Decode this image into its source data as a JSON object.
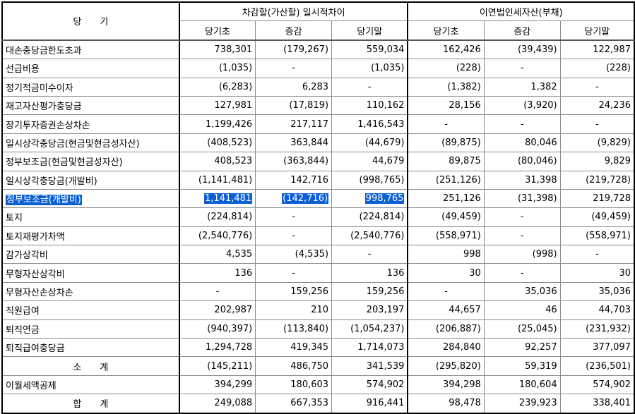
{
  "header": {
    "period": "당　　기",
    "group1": "차감할(가산할) 일시적차이",
    "group2": "이연법인세자산(부채)",
    "sub": [
      "당기초",
      "증감",
      "당기말",
      "당기초",
      "증감",
      "당기말"
    ]
  },
  "rows": [
    {
      "label": "대손충당금한도초과",
      "values": [
        "738,301",
        "(179,267)",
        "559,034",
        "162,426",
        "(39,439)",
        "122,987"
      ]
    },
    {
      "label": "선급비용",
      "values": [
        "(1,035)",
        "-",
        "(1,035)",
        "(228)",
        "-",
        "(228)"
      ]
    },
    {
      "label": "정기적금미수이자",
      "values": [
        "(6,283)",
        "6,283",
        "-",
        "(1,382)",
        "1,382",
        "-"
      ]
    },
    {
      "label": "재고자산평가충당금",
      "values": [
        "127,981",
        "(17,819)",
        "110,162",
        "28,156",
        "(3,920)",
        "24,236"
      ]
    },
    {
      "label": "장기투자증권손상차손",
      "values": [
        "1,199,426",
        "217,117",
        "1,416,543",
        "-",
        "-",
        "-"
      ]
    },
    {
      "label": "일시상각충당금(현금및현금성자산)",
      "values": [
        "(408,523)",
        "363,844",
        "(44,679)",
        "(89,875)",
        "80,046",
        "(9,829)"
      ]
    },
    {
      "label": "정부보조금(현금및현금성자산)",
      "values": [
        "408,523",
        "(363,844)",
        "44,679",
        "89,875",
        "(80,046)",
        "9,829"
      ]
    },
    {
      "label": "일시상각충당금(개발비)",
      "values": [
        "(1,141,481)",
        "142,716",
        "(998,765)",
        "(251,126)",
        "31,398",
        "(219,728)"
      ]
    },
    {
      "label": "정부보조금(개발비)",
      "values": [
        "1,141,481",
        "(142,716)",
        "998,765",
        "251,126",
        "(31,398)",
        "219,728"
      ],
      "selected": true
    },
    {
      "label": "토지",
      "values": [
        "(224,814)",
        "-",
        "(224,814)",
        "(49,459)",
        "-",
        "(49,459)"
      ]
    },
    {
      "label": "토지재평가차액",
      "values": [
        "(2,540,776)",
        "-",
        "(2,540,776)",
        "(558,971)",
        "-",
        "(558,971)"
      ]
    },
    {
      "label": "감가상각비",
      "values": [
        "4,535",
        "(4,535)",
        "-",
        "998",
        "(998)",
        "-"
      ]
    },
    {
      "label": "무형자산상각비",
      "values": [
        "136",
        "-",
        "136",
        "30",
        "-",
        "30"
      ]
    },
    {
      "label": "무형자산손상차손",
      "values": [
        "-",
        "159,256",
        "159,256",
        "-",
        "35,036",
        "35,036"
      ]
    },
    {
      "label": "직원급여",
      "values": [
        "202,987",
        "210",
        "203,197",
        "44,657",
        "46",
        "44,703"
      ]
    },
    {
      "label": "퇴직연금",
      "values": [
        "(940,397)",
        "(113,840)",
        "(1,054,237)",
        "(206,887)",
        "(25,045)",
        "(231,932)"
      ]
    },
    {
      "label": "퇴직급여충당금",
      "values": [
        "1,294,728",
        "419,345",
        "1,714,073",
        "284,840",
        "92,257",
        "377,097"
      ]
    },
    {
      "label": "소　　계",
      "values": [
        "(145,211)",
        "486,750",
        "341,539",
        "(295,820)",
        "59,319",
        "(236,501)"
      ],
      "center": true
    },
    {
      "label": "이월세액공제",
      "values": [
        "394,299",
        "180,603",
        "574,902",
        "394,298",
        "180,604",
        "574,902"
      ]
    },
    {
      "label": "합　　계",
      "values": [
        "249,088",
        "667,353",
        "916,441",
        "98,478",
        "239,923",
        "338,401"
      ],
      "center": true
    }
  ],
  "colors": {
    "selection": "#0a5fd3"
  }
}
